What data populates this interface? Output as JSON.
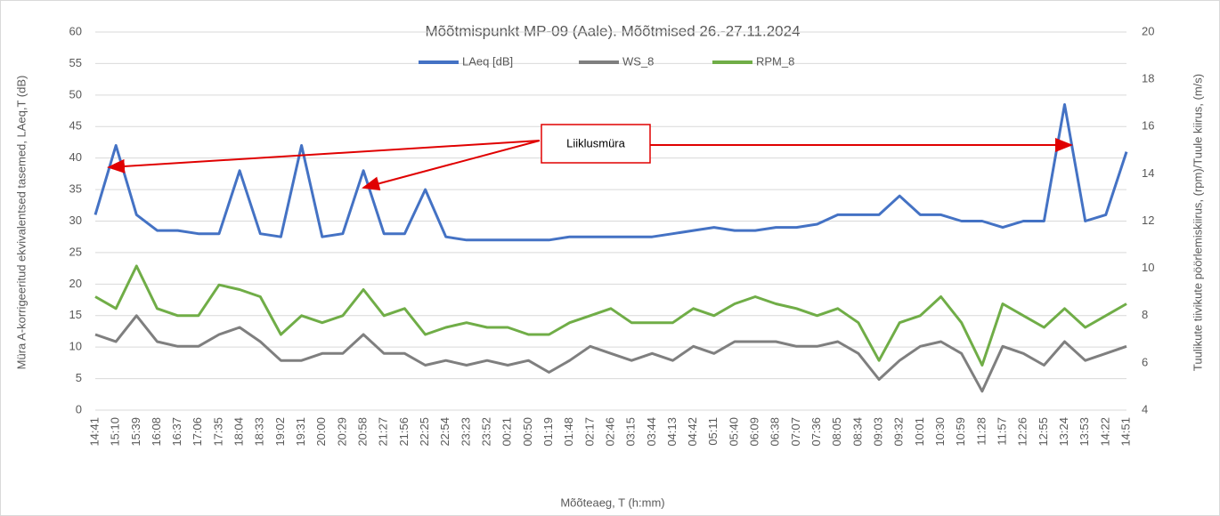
{
  "chart_data": {
    "type": "line",
    "title": "Mõõtmispunkt MP-09 (Aale). Mõõtmised 26.-27.11.2024",
    "x_label": "Mõõteaeg, T (h:mm)",
    "y_label": "Müra A-korrigeeritud ekvivalentsed tasemed, LAeq,T (dB)",
    "y2_label": "Tuulikute tiivikute pöörlemiskiirus, (rpm)/Tuule kiirus, (m/s)",
    "annotations": [
      "Liiklusmüra"
    ],
    "categories": [
      "14:41",
      "15:10",
      "15:39",
      "16:08",
      "16:37",
      "17:06",
      "17:35",
      "18:04",
      "18:33",
      "19:02",
      "19:31",
      "20:00",
      "20:29",
      "20:58",
      "21:27",
      "21:56",
      "22:25",
      "22:54",
      "23:23",
      "23:52",
      "00:21",
      "00:50",
      "01:19",
      "01:48",
      "02:17",
      "02:46",
      "03:15",
      "03:44",
      "04:13",
      "04:42",
      "05:11",
      "05:40",
      "06:09",
      "06:38",
      "07:07",
      "07:36",
      "08:05",
      "08:34",
      "09:03",
      "09:32",
      "10:01",
      "10:30",
      "10:59",
      "11:28",
      "11:57",
      "12:26",
      "12:55",
      "13:24",
      "13:53",
      "14:22",
      "14:51"
    ],
    "series": [
      {
        "name": "LAeq [dB]",
        "color": "#4472c4",
        "values": [
          31,
          42,
          31,
          28.5,
          28.5,
          28,
          28,
          38,
          28,
          27.5,
          42,
          27.5,
          28,
          38,
          28,
          28,
          35,
          27.5,
          27,
          27,
          27,
          27,
          27,
          27.5,
          27.5,
          27.5,
          27.5,
          27.5,
          28,
          28.5,
          29,
          28.5,
          28.5,
          29,
          29,
          29.5,
          31,
          31,
          31,
          34,
          31,
          31,
          30,
          30,
          29,
          30,
          30,
          48.5,
          30,
          31,
          41
        ]
      },
      {
        "name": "WS_8",
        "color": "#7f7f7f",
        "axis": "y2",
        "values": [
          7.2,
          6.9,
          8.0,
          6.9,
          6.7,
          6.7,
          7.2,
          7.5,
          6.9,
          6.1,
          6.1,
          6.4,
          6.4,
          7.2,
          6.4,
          6.4,
          5.9,
          6.1,
          5.9,
          6.1,
          5.9,
          6.1,
          5.6,
          6.1,
          6.7,
          6.4,
          6.1,
          6.4,
          6.1,
          6.7,
          6.4,
          6.9,
          6.9,
          6.9,
          6.7,
          6.7,
          6.9,
          6.4,
          5.3,
          6.1,
          6.7,
          6.9,
          6.4,
          4.8,
          6.7,
          6.4,
          5.9,
          6.9,
          6.1,
          6.4,
          6.7
        ]
      },
      {
        "name": "RPM_8",
        "color": "#70ad47",
        "axis": "y2",
        "values": [
          8.8,
          8.3,
          10.1,
          8.3,
          8.0,
          8.0,
          9.3,
          9.1,
          8.8,
          7.2,
          8.0,
          7.7,
          8.0,
          9.1,
          8.0,
          8.3,
          7.2,
          7.5,
          7.7,
          7.5,
          7.5,
          7.2,
          7.2,
          7.7,
          8.0,
          8.3,
          7.7,
          7.7,
          7.7,
          8.3,
          8.0,
          8.5,
          8.8,
          8.5,
          8.3,
          8.0,
          8.3,
          7.7,
          6.1,
          7.7,
          8.0,
          8.8,
          7.7,
          5.9,
          8.5,
          8.0,
          7.5,
          8.3,
          7.5,
          8.0,
          8.5
        ]
      }
    ],
    "ylim": [
      0,
      60
    ],
    "yticks": [
      0,
      5,
      10,
      15,
      20,
      25,
      30,
      35,
      40,
      45,
      50,
      55,
      60
    ],
    "y2lim": [
      4,
      20
    ],
    "y2ticks": [
      4,
      6,
      8,
      10,
      12,
      14,
      16,
      18,
      20
    ],
    "grid": true,
    "legend": "top"
  }
}
